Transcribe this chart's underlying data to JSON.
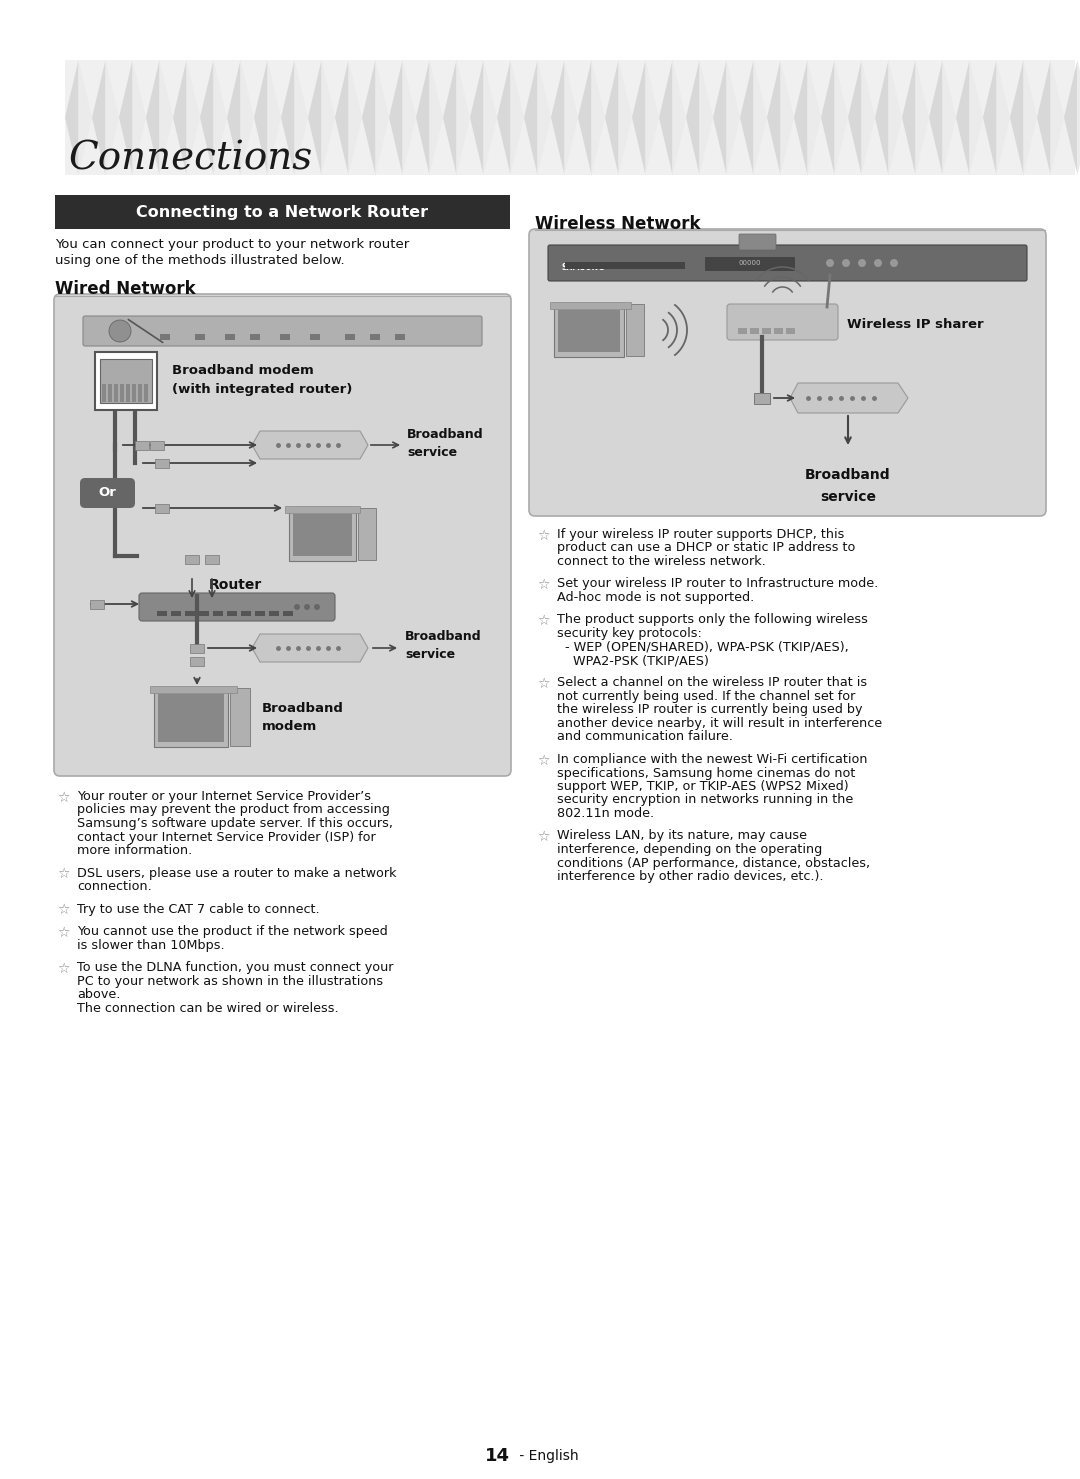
{
  "title": "Connections",
  "section_title": "Connecting to a Network Router",
  "intro_line1": "You can connect your product to your network router",
  "intro_line2": "using one of the methods illustrated below.",
  "wired_title": "Wired Network",
  "wireless_title": "Wireless Network",
  "page_number": "14",
  "background_color": "#ffffff",
  "section_header_bg": "#2d2d2d",
  "section_header_color": "#ffffff",
  "diagram_bg": "#d6d6d6",
  "header_pattern_bg": "#f0f0f0",
  "bullet_left": [
    [
      "Your router or your Internet Service Provider’s",
      "policies may prevent the product from accessing",
      "Samsung’s software update server. If this occurs,",
      "contact your Internet Service Provider (ISP) for",
      "more information."
    ],
    [
      "DSL users, please use a router to make a network",
      "connection."
    ],
    [
      "Try to use the CAT 7 cable to connect."
    ],
    [
      "You cannot use the product if the network speed",
      "is slower than 10Mbps."
    ],
    [
      "To use the DLNA function, you must connect your",
      "PC to your network as shown in the illustrations",
      "above.",
      "The connection can be wired or wireless."
    ]
  ],
  "bullet_right": [
    [
      "If your wireless IP router supports DHCP, this",
      "product can use a DHCP or static IP address to",
      "connect to the wireless network."
    ],
    [
      "Set your wireless IP router to Infrastructure mode.",
      "Ad-hoc mode is not supported."
    ],
    [
      "The product supports only the following wireless",
      "security key protocols:",
      "  - WEP (OPEN/SHARED), WPA-PSK (TKIP/AES),",
      "    WPA2-PSK (TKIP/AES)"
    ],
    [
      "Select a channel on the wireless IP router that is",
      "not currently being used. If the channel set for",
      "the wireless IP router is currently being used by",
      "another device nearby, it will result in interference",
      "and communication failure."
    ],
    [
      "In compliance with the newest Wi-Fi certification",
      "specifications, Samsung home cinemas do not",
      "support WEP, TKIP, or TKIP-AES (WPS2 Mixed)",
      "security encryption in networks running in the",
      "802.11n mode."
    ],
    [
      "Wireless LAN, by its nature, may cause",
      "interference, depending on the operating",
      "conditions (AP performance, distance, obstacles,",
      "interference by other radio devices, etc.)."
    ]
  ],
  "wireless_ip_sharer_label": "Wireless IP sharer",
  "broadband_service": "Broadband\nservice",
  "broadband_modem_label": "Broadband modem\n(with integrated router)",
  "router_label": "Router",
  "broadband_modem_bottom": "Broadband\nmodem",
  "or_label": "Or"
}
